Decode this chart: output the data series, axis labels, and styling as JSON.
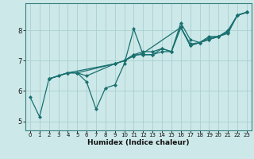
{
  "title": "",
  "xlabel": "Humidex (Indice chaleur)",
  "ylabel": "",
  "xlim": [
    -0.5,
    23.5
  ],
  "ylim": [
    4.7,
    8.9
  ],
  "yticks": [
    5,
    6,
    7,
    8
  ],
  "xticks": [
    0,
    1,
    2,
    3,
    4,
    5,
    6,
    7,
    8,
    9,
    10,
    11,
    12,
    13,
    14,
    15,
    16,
    17,
    18,
    19,
    20,
    21,
    22,
    23
  ],
  "background_color": "#cce8e8",
  "grid_color": "#aad0d0",
  "line_color": "#1a7070",
  "series": [
    {
      "x": [
        0,
        1,
        2,
        3,
        4,
        5,
        6,
        7,
        8,
        9,
        10,
        11,
        12,
        13,
        14,
        15,
        16,
        17,
        18,
        19,
        20,
        21,
        22,
        23
      ],
      "y": [
        5.8,
        5.15,
        6.4,
        6.5,
        6.6,
        6.6,
        6.3,
        5.4,
        6.1,
        6.2,
        6.9,
        8.05,
        7.2,
        7.2,
        7.4,
        7.3,
        8.25,
        7.7,
        7.6,
        7.8,
        7.8,
        8.0,
        8.5,
        8.6
      ],
      "marker": "D",
      "markersize": 2.0,
      "linewidth": 0.9
    },
    {
      "x": [
        2,
        3,
        4,
        5,
        6,
        9,
        10,
        11,
        12,
        13,
        14,
        15,
        16,
        17,
        18,
        19,
        20,
        21,
        22,
        23
      ],
      "y": [
        6.4,
        6.5,
        6.6,
        6.6,
        6.5,
        6.9,
        7.0,
        7.2,
        7.3,
        7.3,
        7.4,
        7.3,
        8.1,
        7.5,
        7.6,
        7.7,
        7.8,
        7.9,
        8.5,
        8.6
      ],
      "marker": "D",
      "markersize": 2.0,
      "linewidth": 0.9
    },
    {
      "x": [
        2,
        4,
        5,
        9,
        10,
        11,
        12,
        13,
        14,
        15,
        16,
        17,
        18,
        19,
        20,
        21,
        22,
        23
      ],
      "y": [
        6.4,
        6.6,
        6.6,
        6.9,
        7.0,
        7.2,
        7.2,
        7.2,
        7.3,
        7.3,
        8.1,
        7.5,
        7.6,
        7.7,
        7.8,
        7.95,
        8.5,
        8.6
      ],
      "marker": "D",
      "markersize": 2.0,
      "linewidth": 0.9
    },
    {
      "x": [
        2,
        4,
        9,
        10,
        11,
        12,
        16,
        17,
        18,
        19,
        20,
        21,
        22,
        23
      ],
      "y": [
        6.4,
        6.6,
        6.9,
        7.0,
        7.15,
        7.25,
        8.1,
        7.55,
        7.6,
        7.75,
        7.8,
        7.95,
        8.5,
        8.6
      ],
      "marker": "D",
      "markersize": 2.0,
      "linewidth": 0.9
    }
  ]
}
